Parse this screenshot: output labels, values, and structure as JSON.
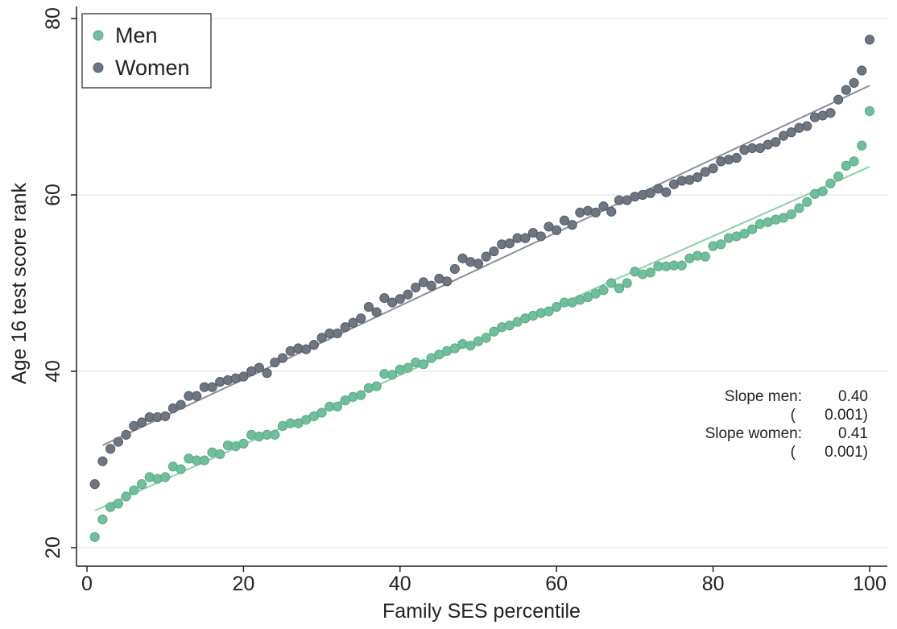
{
  "chart_data": {
    "type": "scatter",
    "title": "",
    "xlabel": "Family SES percentile",
    "ylabel": "Age 16 test score rank",
    "xlim": [
      0,
      100
    ],
    "ylim": [
      20,
      80
    ],
    "xticks": [
      0,
      20,
      40,
      60,
      80,
      100
    ],
    "yticks": [
      20,
      40,
      60,
      80
    ],
    "grid": "horizontal",
    "legend": {
      "placement": "top-left",
      "entries": [
        "Men",
        "Women"
      ]
    },
    "colors": {
      "men": "#6fbf9c",
      "women": "#6e7681",
      "men_line": "#8fd0b2",
      "women_line": "#8a8f96"
    },
    "series": [
      {
        "name": "Men",
        "x": [
          1,
          2,
          3,
          4,
          5,
          6,
          7,
          8,
          9,
          10,
          11,
          12,
          13,
          14,
          15,
          16,
          17,
          18,
          19,
          20,
          21,
          22,
          23,
          24,
          25,
          26,
          27,
          28,
          29,
          30,
          31,
          32,
          33,
          34,
          35,
          36,
          37,
          38,
          39,
          40,
          41,
          42,
          43,
          44,
          45,
          46,
          47,
          48,
          49,
          50,
          51,
          52,
          53,
          54,
          55,
          56,
          57,
          58,
          59,
          60,
          61,
          62,
          63,
          64,
          65,
          66,
          67,
          68,
          69,
          70,
          71,
          72,
          73,
          74,
          75,
          76,
          77,
          78,
          79,
          80,
          81,
          82,
          83,
          84,
          85,
          86,
          87,
          88,
          89,
          90,
          91,
          92,
          93,
          94,
          95,
          96,
          97,
          98,
          99,
          100
        ],
        "y": [
          21.2,
          23.2,
          24.6,
          25.0,
          25.8,
          26.5,
          27.2,
          28.0,
          27.8,
          28.0,
          29.2,
          28.9,
          30.1,
          29.9,
          29.9,
          30.8,
          30.6,
          31.6,
          31.5,
          31.8,
          32.8,
          32.6,
          32.8,
          32.8,
          33.8,
          34.1,
          34.1,
          34.5,
          34.9,
          35.3,
          36.0,
          36.0,
          36.7,
          37.1,
          37.3,
          38.1,
          38.3,
          39.7,
          39.6,
          40.2,
          40.4,
          41.0,
          40.8,
          41.5,
          41.9,
          42.3,
          42.6,
          43.1,
          42.9,
          43.4,
          43.8,
          44.5,
          45.0,
          45.2,
          45.6,
          46.0,
          46.3,
          46.6,
          46.8,
          47.3,
          47.8,
          47.8,
          48.1,
          48.4,
          48.8,
          49.2,
          50.0,
          49.4,
          50.0,
          51.3,
          51.0,
          51.2,
          51.9,
          51.9,
          52.0,
          52.0,
          52.8,
          53.1,
          53.0,
          54.2,
          54.4,
          55.1,
          55.3,
          55.6,
          56.1,
          56.7,
          56.9,
          57.2,
          57.4,
          57.8,
          58.5,
          59.2,
          60.1,
          60.4,
          61.3,
          62.1,
          63.3,
          63.8,
          65.6,
          69.5
        ]
      },
      {
        "name": "Women",
        "x": [
          1,
          2,
          3,
          4,
          5,
          6,
          7,
          8,
          9,
          10,
          11,
          12,
          13,
          14,
          15,
          16,
          17,
          18,
          19,
          20,
          21,
          22,
          23,
          24,
          25,
          26,
          27,
          28,
          29,
          30,
          31,
          32,
          33,
          34,
          35,
          36,
          37,
          38,
          39,
          40,
          41,
          42,
          43,
          44,
          45,
          46,
          47,
          48,
          49,
          50,
          51,
          52,
          53,
          54,
          55,
          56,
          57,
          58,
          59,
          60,
          61,
          62,
          63,
          64,
          65,
          66,
          67,
          68,
          69,
          70,
          71,
          72,
          73,
          74,
          75,
          76,
          77,
          78,
          79,
          80,
          81,
          82,
          83,
          84,
          85,
          86,
          87,
          88,
          89,
          90,
          91,
          92,
          93,
          94,
          95,
          96,
          97,
          98,
          99,
          100
        ],
        "y": [
          27.2,
          29.8,
          31.2,
          32.0,
          32.8,
          33.8,
          34.2,
          34.8,
          34.8,
          34.9,
          35.8,
          36.2,
          37.2,
          37.2,
          38.2,
          38.2,
          38.8,
          39.0,
          39.2,
          39.4,
          40.0,
          40.4,
          39.8,
          41.0,
          41.5,
          42.3,
          42.6,
          42.5,
          43.0,
          43.8,
          44.3,
          44.3,
          45.0,
          45.5,
          46.0,
          47.3,
          46.7,
          48.3,
          47.8,
          48.2,
          48.7,
          49.5,
          50.1,
          49.7,
          50.5,
          50.2,
          51.6,
          52.8,
          52.4,
          52.2,
          53.0,
          53.6,
          54.4,
          54.5,
          55.1,
          55.1,
          55.7,
          55.3,
          56.4,
          56.0,
          57.1,
          56.6,
          58.0,
          58.2,
          58.0,
          58.7,
          58.1,
          59.4,
          59.4,
          59.8,
          60.0,
          60.2,
          60.7,
          60.3,
          61.2,
          61.6,
          61.7,
          62.0,
          62.6,
          63.0,
          63.8,
          64.0,
          64.2,
          65.1,
          65.3,
          65.3,
          65.7,
          66.0,
          66.7,
          67.1,
          67.6,
          67.8,
          68.8,
          69.0,
          69.3,
          70.8,
          71.9,
          72.7,
          74.1,
          77.6
        ]
      }
    ],
    "fit_lines": [
      {
        "name": "Men",
        "x": [
          1,
          100
        ],
        "y": [
          24.2,
          63.2
        ]
      },
      {
        "name": "Women",
        "x": [
          2,
          100
        ],
        "y": [
          31.6,
          72.4
        ]
      }
    ],
    "annotation": {
      "row1_label": "Slope men:",
      "row1_value": "0.40",
      "row2_label": "(",
      "row2_value": "0.001)",
      "row3_label": "Slope women:",
      "row3_value": "0.41",
      "row4_label": "(",
      "row4_value": "0.001)"
    }
  }
}
